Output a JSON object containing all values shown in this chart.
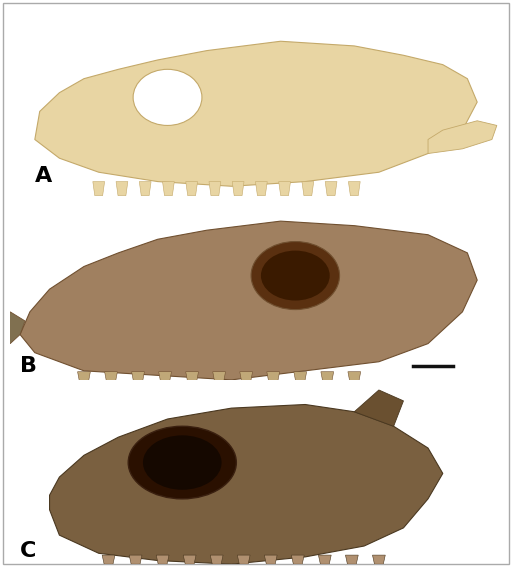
{
  "background_color": "#ffffff",
  "border_color": "#cccccc",
  "label_A": "A",
  "label_B": "B",
  "label_C": "C",
  "label_fontsize": 16,
  "label_fontweight": "bold",
  "panel_A_yrange": [
    0.0,
    0.345
  ],
  "panel_B_yrange": [
    0.33,
    0.655
  ],
  "panel_C_yrange": [
    0.65,
    0.995
  ],
  "scale_bar_color": "#111111",
  "fig_width": 5.12,
  "fig_height": 5.67,
  "dpi": 100,
  "outer_border_linewidth": 1.0,
  "outer_border_color": "#aaaaaa",
  "skull_A_color_main": "#e8d5a3",
  "skull_A_color_shadow": "#c4a96a",
  "skull_B_color_main": "#a08060",
  "skull_B_color_shadow": "#705030",
  "skull_C_color_main": "#7a6040",
  "skull_C_color_shadow": "#4a3820"
}
